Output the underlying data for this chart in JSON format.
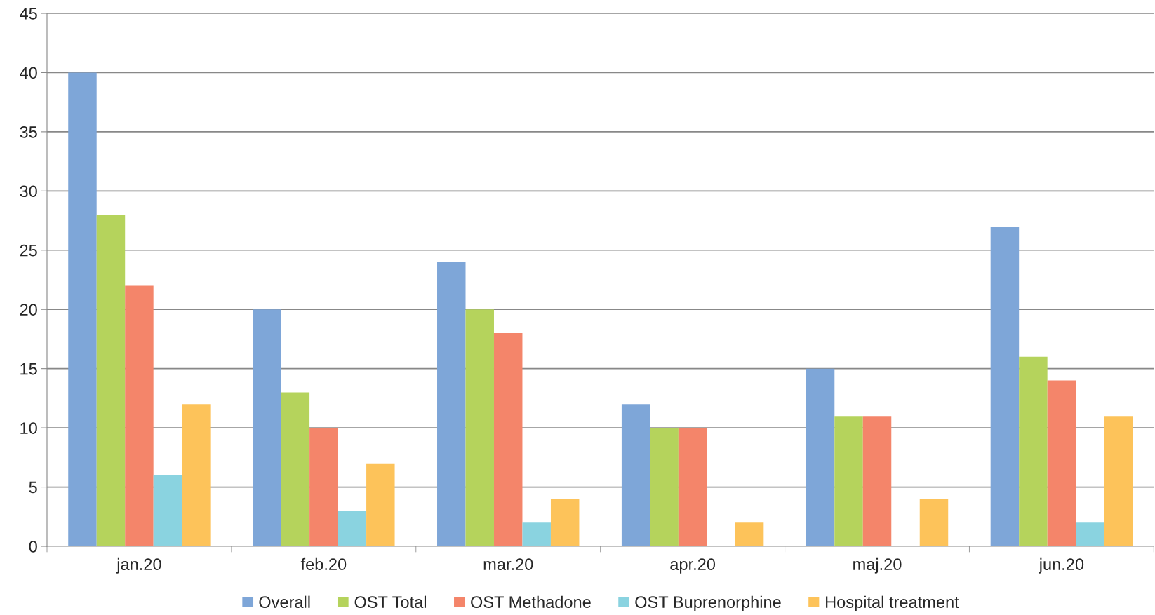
{
  "chart_data": {
    "type": "bar",
    "categories": [
      "jan.20",
      "feb.20",
      "mar.20",
      "apr.20",
      "maj.20",
      "jun.20"
    ],
    "series": [
      {
        "name": "Overall",
        "color": "#7ea6d8",
        "values": [
          40,
          20,
          24,
          12,
          15,
          27
        ]
      },
      {
        "name": "OST Total",
        "color": "#b5d35c",
        "values": [
          28,
          13,
          20,
          10,
          11,
          16
        ]
      },
      {
        "name": "OST Methadone",
        "color": "#f4856a",
        "values": [
          22,
          10,
          18,
          10,
          11,
          14
        ]
      },
      {
        "name": "OST Buprenorphine",
        "color": "#8ad3e0",
        "values": [
          6,
          3,
          2,
          0,
          0,
          2
        ]
      },
      {
        "name": "Hospital treatment",
        "color": "#fdc35a",
        "values": [
          12,
          7,
          4,
          2,
          4,
          11
        ]
      }
    ],
    "ylim": [
      0,
      45
    ],
    "yticks": [
      0,
      5,
      10,
      15,
      20,
      25,
      30,
      35,
      40,
      45
    ],
    "grid": "y",
    "legend": "bottom"
  }
}
